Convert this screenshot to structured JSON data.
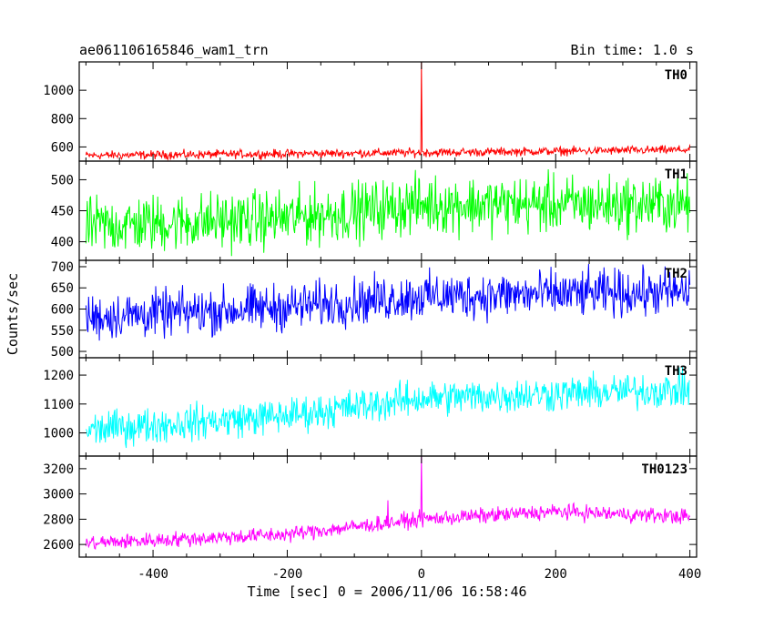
{
  "header": {
    "title": "ae061106165846_wam1_trn",
    "bin_time": "Bin time: 1.0 s"
  },
  "chart_data": {
    "type": "line",
    "xlabel": "Time [sec] 0 = 2006/11/06 16:58:46",
    "ylabel": "Counts/sec",
    "xlim": [
      -510,
      410
    ],
    "x_ticks": [
      -400,
      -200,
      0,
      200,
      400
    ],
    "x_range": [
      -500,
      400
    ],
    "bin_time_s": 1.0,
    "panels": [
      {
        "name": "TH0",
        "color": "#ff0000",
        "ylim": [
          500,
          1200
        ],
        "y_ticks": [
          600,
          800,
          1000
        ],
        "trend": [
          [
            -500,
            540
          ],
          [
            0,
            560
          ],
          [
            400,
            580
          ]
        ],
        "noise_amplitude": 25,
        "spikes": [
          {
            "x": 0,
            "y": 1200
          }
        ]
      },
      {
        "name": "TH1",
        "color": "#00ff00",
        "ylim": [
          370,
          530
        ],
        "y_ticks": [
          400,
          450,
          500
        ],
        "trend": [
          [
            -500,
            425
          ],
          [
            -200,
            438
          ],
          [
            0,
            460
          ],
          [
            400,
            460
          ]
        ],
        "noise_amplitude": 38,
        "spikes": []
      },
      {
        "name": "TH2",
        "color": "#0000ff",
        "ylim": [
          485,
          715
        ],
        "y_ticks": [
          500,
          550,
          600,
          650,
          700
        ],
        "trend": [
          [
            -500,
            580
          ],
          [
            -200,
            605
          ],
          [
            0,
            630
          ],
          [
            400,
            640
          ]
        ],
        "noise_amplitude": 45,
        "spikes": []
      },
      {
        "name": "TH3",
        "color": "#00ffff",
        "ylim": [
          920,
          1260
        ],
        "y_ticks": [
          1000,
          1100,
          1200
        ],
        "trend": [
          [
            -500,
            1010
          ],
          [
            -200,
            1060
          ],
          [
            0,
            1120
          ],
          [
            400,
            1150
          ]
        ],
        "noise_amplitude": 50,
        "spikes": []
      },
      {
        "name": "TH0123",
        "color": "#ff00ff",
        "ylim": [
          2500,
          3300
        ],
        "y_ticks": [
          2600,
          2800,
          3000,
          3200
        ],
        "trend": [
          [
            -500,
            2610
          ],
          [
            -200,
            2680
          ],
          [
            0,
            2800
          ],
          [
            200,
            2860
          ],
          [
            400,
            2820
          ]
        ],
        "noise_amplitude": 50,
        "spikes": [
          {
            "x": -50,
            "y": 2950
          },
          {
            "x": 0,
            "y": 3300
          }
        ]
      }
    ]
  }
}
